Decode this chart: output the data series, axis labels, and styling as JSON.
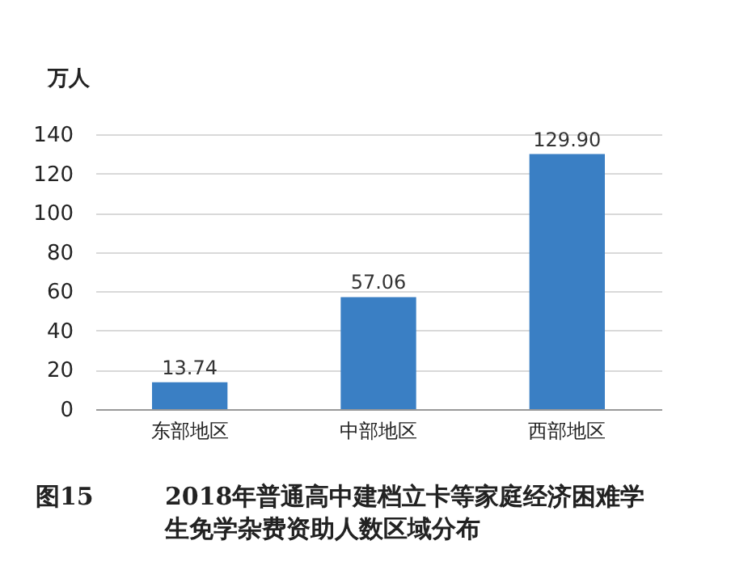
{
  "chart_data": {
    "type": "bar",
    "title": "2018年普通高中建档立卡等家庭经济困难学生免学杂费资助人数区域分布",
    "annotations": [
      "图15"
    ],
    "ylabel": "万人",
    "categories": [
      "东部地区",
      "中部地区",
      "西部地区"
    ],
    "values": [
      13.74,
      57.06,
      129.9
    ],
    "value_labels": [
      "13.74",
      "57.06",
      "129.90"
    ],
    "color": "#3a7fc4",
    "ylim": [
      0,
      140
    ],
    "yticks": [
      0,
      20,
      40,
      60,
      80,
      100,
      120,
      140
    ],
    "grid": "y"
  }
}
